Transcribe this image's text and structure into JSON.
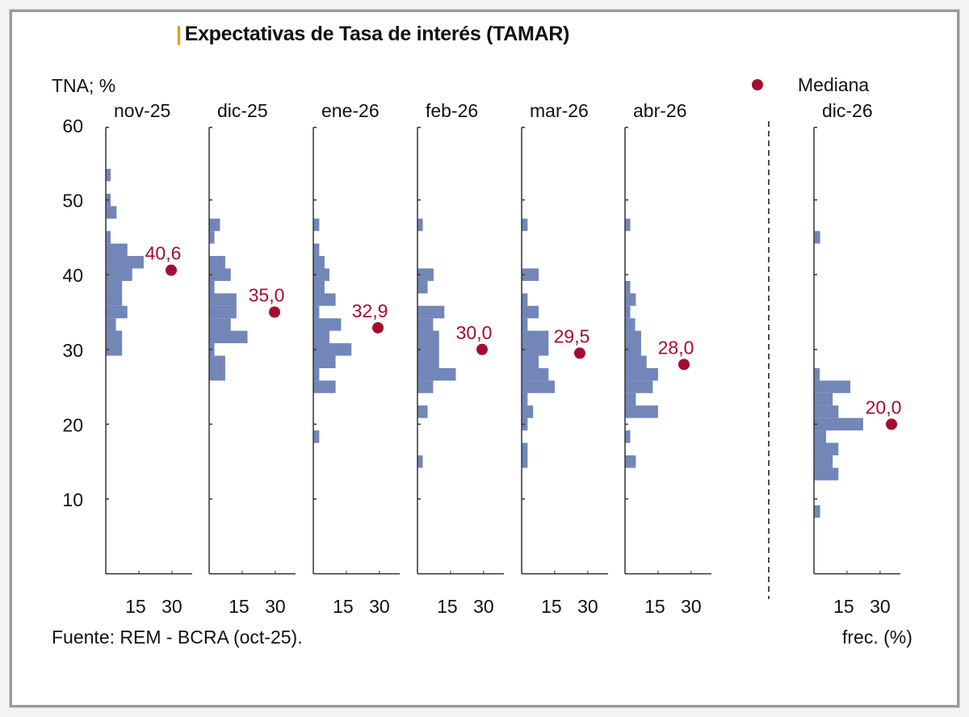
{
  "chart_data": {
    "type": "bar",
    "orientation": "horizontal-histogram",
    "title": "Expectativas de Tasa de interés (TAMAR)",
    "ylabel": "TNA; %",
    "xlabel": "frec. (%)",
    "source": "Fuente: REM - BCRA (oct-25).",
    "ylim": [
      0,
      60
    ],
    "yticks": [
      10,
      20,
      30,
      40,
      50,
      60
    ],
    "xticks": [
      15,
      30
    ],
    "xlim": [
      0,
      38
    ],
    "grid": false,
    "legend": {
      "label": "Mediana",
      "position": "top-right"
    },
    "colors": {
      "bars": "#7286b8",
      "median": "#a50d30",
      "title_accent": "#e0a000"
    },
    "bin_width": 1.67,
    "panels": [
      {
        "label": "nov-25",
        "median": 40.6,
        "median_label": "40,6",
        "bins": [
          [
            53.33,
            2.2
          ],
          [
            50,
            2.2
          ],
          [
            48.33,
            4.9
          ],
          [
            45,
            2.2
          ],
          [
            43.33,
            9.8
          ],
          [
            41.67,
            17.2
          ],
          [
            40,
            12
          ],
          [
            38.33,
            7.4
          ],
          [
            36.67,
            7.4
          ],
          [
            35,
            9.8
          ],
          [
            33.33,
            4.6
          ],
          [
            31.67,
            7.4
          ],
          [
            30,
            7.4
          ]
        ]
      },
      {
        "label": "dic-25",
        "median": 35.0,
        "median_label": "35,0",
        "bins": [
          [
            46.67,
            4.9
          ],
          [
            45,
            2.4
          ],
          [
            41.67,
            7.3
          ],
          [
            40,
            9.8
          ],
          [
            38.33,
            2.4
          ],
          [
            36.67,
            12.4
          ],
          [
            35,
            12.4
          ],
          [
            33.33,
            9.8
          ],
          [
            31.67,
            17.4
          ],
          [
            30,
            2.4
          ],
          [
            28.33,
            7.3
          ],
          [
            26.67,
            7.3
          ]
        ]
      },
      {
        "label": "ene-26",
        "median": 32.9,
        "median_label": "32,9",
        "bins": [
          [
            46.67,
            2.7
          ],
          [
            43.33,
            2.7
          ],
          [
            41.67,
            5.1
          ],
          [
            40,
            7.3
          ],
          [
            38.33,
            5.1
          ],
          [
            36.67,
            10.1
          ],
          [
            35,
            2.7
          ],
          [
            33.33,
            12.6
          ],
          [
            31.67,
            7.3
          ],
          [
            30,
            17.3
          ],
          [
            28.33,
            10.1
          ],
          [
            26.67,
            2.7
          ],
          [
            25,
            10.1
          ],
          [
            18.33,
            2.7
          ]
        ]
      },
      {
        "label": "feb-26",
        "median": 30.0,
        "median_label": "30,0",
        "bins": [
          [
            46.67,
            2.4
          ],
          [
            40,
            7.3
          ],
          [
            38.33,
            4.6
          ],
          [
            35,
            12.2
          ],
          [
            33.33,
            7.1
          ],
          [
            31.67,
            9.8
          ],
          [
            30,
            9.8
          ],
          [
            28.33,
            9.8
          ],
          [
            26.67,
            17.4
          ],
          [
            25,
            7.1
          ],
          [
            21.67,
            4.6
          ],
          [
            15,
            2.4
          ]
        ]
      },
      {
        "label": "mar-26",
        "median": 29.5,
        "median_label": "29,5",
        "bins": [
          [
            46.67,
            2.7
          ],
          [
            40,
            7.7
          ],
          [
            36.67,
            2.7
          ],
          [
            35,
            7.7
          ],
          [
            33.33,
            2.7
          ],
          [
            31.67,
            12.2
          ],
          [
            30,
            12.2
          ],
          [
            28.33,
            7.7
          ],
          [
            26.67,
            12.2
          ],
          [
            25,
            15
          ],
          [
            23.33,
            2.7
          ],
          [
            21.67,
            5.2
          ],
          [
            20,
            2.7
          ],
          [
            16.67,
            2.7
          ],
          [
            15,
            2.7
          ]
        ]
      },
      {
        "label": "abr-26",
        "median": 28.0,
        "median_label": "28,0",
        "bins": [
          [
            46.67,
            2.4
          ],
          [
            38.33,
            2.4
          ],
          [
            36.67,
            4.9
          ],
          [
            35,
            2.4
          ],
          [
            33.33,
            4.6
          ],
          [
            31.67,
            7.3
          ],
          [
            30,
            7.3
          ],
          [
            28.33,
            9.8
          ],
          [
            26.67,
            15
          ],
          [
            25,
            12.6
          ],
          [
            23.33,
            4.9
          ],
          [
            21.67,
            15
          ],
          [
            18.33,
            2.4
          ],
          [
            15,
            4.9
          ]
        ]
      },
      {
        "label": "dic-26",
        "median": 20.0,
        "median_label": "20,0",
        "bins": [
          [
            45,
            2.8
          ],
          [
            26.67,
            2.6
          ],
          [
            25,
            16.5
          ],
          [
            23.33,
            8.5
          ],
          [
            21.67,
            11.1
          ],
          [
            20,
            22.3
          ],
          [
            18.33,
            5.5
          ],
          [
            16.67,
            11.1
          ],
          [
            15,
            8.5
          ],
          [
            13.33,
            11.1
          ],
          [
            8.33,
            2.8
          ]
        ]
      }
    ]
  }
}
